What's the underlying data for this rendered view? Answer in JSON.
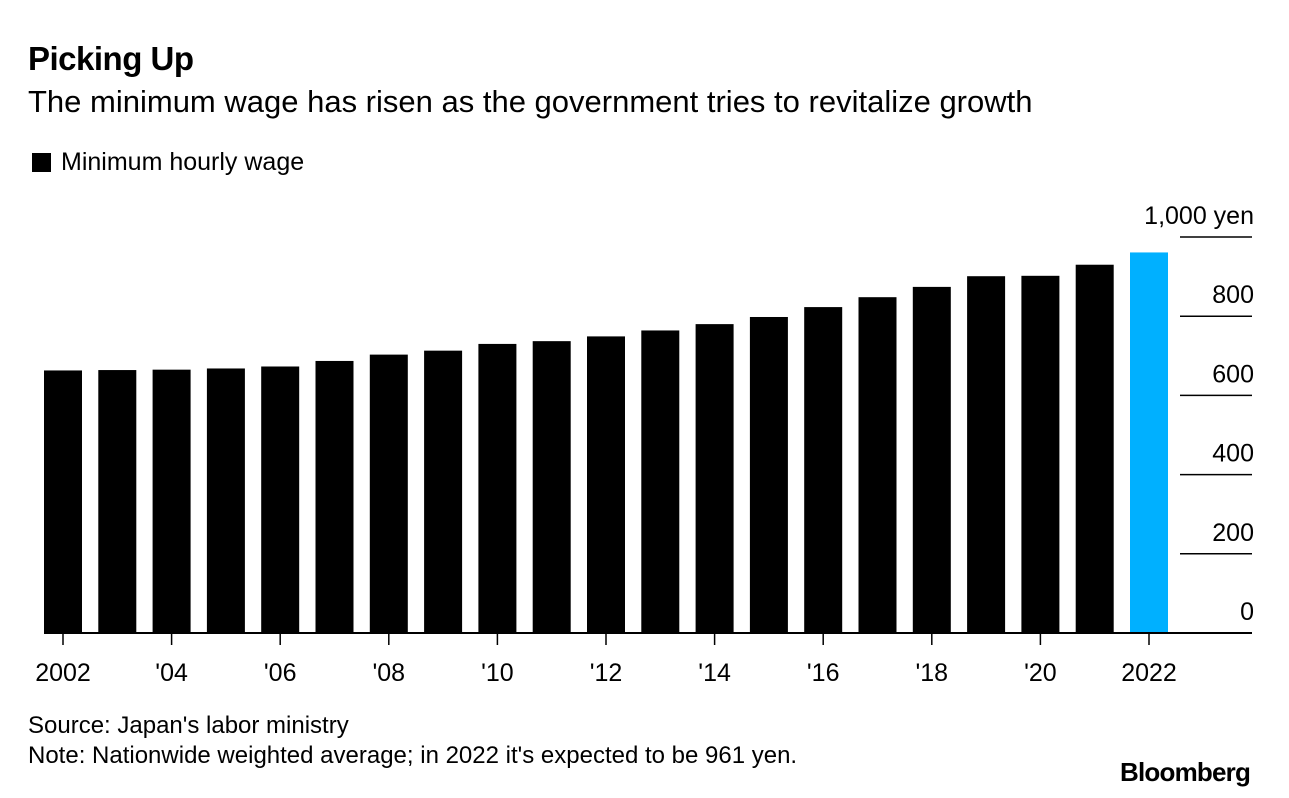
{
  "header": {
    "title": "Picking Up",
    "subtitle": "The minimum wage has risen as the government tries to revitalize growth"
  },
  "legend": {
    "label": "Minimum hourly wage"
  },
  "footer": {
    "source": "Source: Japan's labor ministry",
    "note": "Note: Nationwide weighted average; in 2022 it's expected to be 961 yen.",
    "logo": "Bloomberg"
  },
  "colors": {
    "bar": "#000000",
    "highlight": "#00b0ff",
    "gridline": "#000000"
  },
  "chart_data": {
    "type": "bar",
    "categories": [
      2002,
      2003,
      2004,
      2005,
      2006,
      2007,
      2008,
      2009,
      2010,
      2011,
      2012,
      2013,
      2014,
      2015,
      2016,
      2017,
      2018,
      2019,
      2020,
      2021,
      2022
    ],
    "series": [
      {
        "name": "Minimum hourly wage",
        "values": [
          663,
          664,
          665,
          668,
          673,
          687,
          703,
          713,
          730,
          737,
          749,
          764,
          780,
          798,
          823,
          848,
          874,
          901,
          902,
          930,
          961
        ]
      }
    ],
    "highlight_categories": [
      2022
    ],
    "x_tick_labels": [
      "2002",
      "'04",
      "'06",
      "'08",
      "'10",
      "'12",
      "'14",
      "'16",
      "'18",
      "'20",
      "2022"
    ],
    "x_tick_values": [
      2002,
      2004,
      2006,
      2008,
      2010,
      2012,
      2014,
      2016,
      2018,
      2020,
      2022
    ],
    "y_ticks": [
      0,
      200,
      400,
      600,
      800,
      1000
    ],
    "y_tick_labels": [
      "0",
      "200",
      "400",
      "600",
      "800",
      "1,000 yen"
    ],
    "ylim": [
      0,
      1000
    ],
    "grid": true,
    "legend_position": "top-left"
  }
}
